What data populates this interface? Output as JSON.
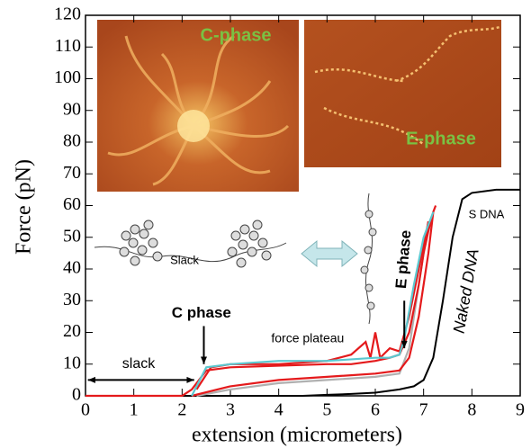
{
  "chart_data": {
    "type": "line",
    "x_label": "extension (micrometers)",
    "y_label": "Force (pN)",
    "xlim": [
      0,
      9
    ],
    "xticks": [
      0,
      1,
      2,
      3,
      4,
      5,
      6,
      7,
      8,
      9
    ],
    "ylim": [
      0,
      120
    ],
    "yticks": [
      0,
      10,
      20,
      30,
      40,
      50,
      60,
      70,
      80,
      90,
      100,
      110,
      120
    ],
    "series": [
      {
        "color": "#000000",
        "x": [
          0,
          1,
          2,
          3,
          4,
          4.5,
          5,
          5.5,
          6,
          6.5,
          6.8,
          7,
          7.2,
          7.4,
          7.6,
          7.8,
          8,
          8.5,
          9
        ],
        "values": [
          0,
          0,
          0,
          0,
          0,
          0,
          0.3,
          0.6,
          1,
          2,
          3,
          5,
          12,
          30,
          50,
          62,
          64,
          65,
          65
        ]
      },
      {
        "color": "#b0b0b0",
        "x": [
          2.3,
          3,
          4,
          5,
          6,
          6.5,
          6.7,
          6.9,
          7.1
        ],
        "values": [
          0,
          2,
          4,
          5,
          6,
          7,
          15,
          35,
          55
        ]
      },
      {
        "color": "#e41a1c",
        "x": [
          0,
          2,
          2.2,
          2.5,
          3,
          4,
          5,
          5.5,
          6,
          6.3,
          6.5,
          6.7,
          6.9,
          7,
          7.1,
          7.2,
          7.25
        ],
        "values": [
          0,
          0,
          2,
          8,
          9,
          9.5,
          10,
          10,
          11,
          12,
          13,
          20,
          35,
          45,
          52,
          58,
          60
        ]
      },
      {
        "color": "#e41a1c",
        "x": [
          2.2,
          3,
          4,
          5,
          6,
          6.5,
          6.7,
          6.9,
          7.1,
          7.2
        ],
        "values": [
          0,
          3,
          5,
          6,
          7,
          8,
          12,
          25,
          45,
          58
        ]
      },
      {
        "color": "#e41a1c",
        "x": [
          2.3,
          2.6,
          3,
          4,
          5,
          5.5,
          5.8,
          5.9,
          6,
          6.1,
          6.3,
          6.5,
          6.7,
          6.9,
          7.1
        ],
        "values": [
          2,
          9,
          10,
          10,
          11,
          13,
          17,
          12,
          20,
          12,
          15,
          14,
          25,
          40,
          55
        ]
      },
      {
        "color": "#5bc8d0",
        "x": [
          2.2,
          2.5,
          3,
          4,
          5,
          6,
          6.3,
          6.5,
          6.6,
          6.8,
          7,
          7.2
        ],
        "values": [
          0,
          9,
          10,
          11,
          11,
          12,
          12,
          13,
          18,
          35,
          50,
          58
        ]
      }
    ],
    "annotations": {
      "c_phase": "C phase",
      "e_phase": "E phase",
      "slack": "slack",
      "force_plateau": "force plateau",
      "s_dna": "S DNA",
      "naked_dna": "Naked DNA",
      "slack_diagram": "Slack",
      "inset_c": "C-phase",
      "inset_e": "E-phase"
    }
  }
}
